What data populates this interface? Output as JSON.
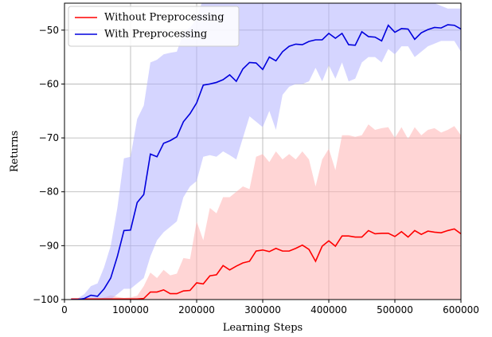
{
  "chart_data": {
    "type": "line",
    "xlabel": "Learning Steps",
    "ylabel": "Returns",
    "x": [
      10000,
      20000,
      30000,
      40000,
      50000,
      60000,
      70000,
      80000,
      90000,
      100000,
      110000,
      120000,
      130000,
      140000,
      150000,
      160000,
      170000,
      180000,
      190000,
      200000,
      210000,
      220000,
      230000,
      240000,
      250000,
      260000,
      270000,
      280000,
      290000,
      300000,
      310000,
      320000,
      330000,
      340000,
      350000,
      360000,
      370000,
      380000,
      390000,
      400000,
      410000,
      420000,
      430000,
      440000,
      450000,
      460000,
      470000,
      480000,
      490000,
      500000,
      510000,
      520000,
      530000,
      540000,
      550000,
      560000,
      570000,
      580000,
      590000,
      600000
    ],
    "series": [
      {
        "name": "Without Preprocessing",
        "color": "#ff0000",
        "band_color": "#ffb3b3",
        "values": [
          -99.9,
          -99.9,
          -99.9,
          -99.9,
          -99.9,
          -99.9,
          -99.9,
          -99.9,
          -99.9,
          -99.9,
          -99.9,
          -99.8,
          -98.6,
          -98.6,
          -98.2,
          -98.9,
          -98.9,
          -98.4,
          -98.3,
          -96.9,
          -97.1,
          -95.6,
          -95.4,
          -93.7,
          -94.5,
          -93.8,
          -93.2,
          -92.9,
          -91,
          -90.8,
          -91.1,
          -90.5,
          -91,
          -91,
          -90.5,
          -89.9,
          -90.7,
          -92.9,
          -90.1,
          -89.1,
          -90.1,
          -88.2,
          -88.2,
          -88.4,
          -88.4,
          -87.2,
          -87.8,
          -87.7,
          -87.7,
          -88.3,
          -87.4,
          -88.4,
          -87.2,
          -87.9,
          -87.3,
          -87.5,
          -87.6,
          -87.2,
          -86.9,
          -87.8
        ],
        "upper": [
          -100,
          -100,
          -100,
          -100,
          -100,
          -99.6,
          -99.2,
          -99.5,
          -99.7,
          -99.6,
          -99.3,
          -97.5,
          -95,
          -96,
          -94.5,
          -95.5,
          -95.2,
          -92.3,
          -92.5,
          -85.5,
          -89,
          -83,
          -84,
          -81,
          -81,
          -80,
          -79,
          -79.5,
          -73.5,
          -73,
          -74.5,
          -72.5,
          -74,
          -73,
          -74,
          -72.5,
          -74,
          -79,
          -74,
          -72,
          -76,
          -69.5,
          -69.5,
          -69.8,
          -69.5,
          -67.5,
          -68.5,
          -68.2,
          -68,
          -70,
          -68,
          -70.2,
          -68,
          -69.5,
          -68.5,
          -68.2,
          -69,
          -68.5,
          -67.8,
          -69.5
        ],
        "lower": [
          -100,
          -100,
          -100,
          -100,
          -100,
          -100,
          -100,
          -100,
          -100,
          -100,
          -100,
          -100,
          -100,
          -100,
          -100,
          -100,
          -100,
          -100,
          -100,
          -100,
          -100,
          -100,
          -100,
          -100,
          -100,
          -100,
          -100,
          -100,
          -100,
          -100,
          -100,
          -100,
          -100,
          -100,
          -100,
          -100,
          -100,
          -100,
          -100,
          -100,
          -100,
          -100,
          -100,
          -100,
          -100,
          -100,
          -100,
          -100,
          -100,
          -100,
          -100,
          -100,
          -100,
          -100,
          -100,
          -100,
          -100,
          -100,
          -100,
          -100
        ]
      },
      {
        "name": "With Preprocessing",
        "color": "#0000dd",
        "band_color": "#b3b3ff",
        "values": [
          -100,
          -100,
          -99.8,
          -99.2,
          -99.4,
          -98,
          -96,
          -92,
          -87.2,
          -87.1,
          -82,
          -80.5,
          -73,
          -73.5,
          -71,
          -70.5,
          -69.8,
          -67,
          -65.5,
          -63.5,
          -60.2,
          -60,
          -59.7,
          -59.2,
          -58.3,
          -59.5,
          -57.2,
          -56,
          -56.1,
          -57.3,
          -55,
          -55.7,
          -54,
          -53,
          -52.6,
          -52.7,
          -52.1,
          -51.8,
          -51.8,
          -50.6,
          -51.5,
          -50.6,
          -52.7,
          -52.8,
          -50.3,
          -51.2,
          -51.3,
          -52,
          -49.1,
          -50.4,
          -49.7,
          -49.8,
          -51.7,
          -50.5,
          -49.9,
          -49.5,
          -49.6,
          -49,
          -49.1,
          -49.8
        ],
        "upper": [
          -100,
          -99.8,
          -99,
          -97.5,
          -97,
          -94,
          -90,
          -83,
          -73.8,
          -73.5,
          -66.5,
          -64,
          -56,
          -55.5,
          -54.5,
          -54.2,
          -54,
          -50.5,
          -49.5,
          -48,
          -44,
          -44,
          -44,
          -44,
          -44,
          -44,
          -44,
          -44,
          -44,
          -44,
          -44,
          -44,
          -44,
          -44,
          -44,
          -44,
          -44,
          -44,
          -44,
          -44,
          -44,
          -44,
          -44,
          -44,
          -44,
          -44,
          -44,
          -44,
          -44,
          -44,
          -44,
          -44,
          -44,
          -44,
          -44,
          -45,
          -45.5,
          -46,
          -46,
          -46
        ],
        "lower": [
          -100,
          -100,
          -100,
          -100,
          -100,
          -100,
          -100,
          -99,
          -98,
          -98,
          -97,
          -96,
          -92,
          -89,
          -87.5,
          -86.5,
          -85.5,
          -81,
          -79,
          -78,
          -73.5,
          -73.2,
          -73.5,
          -72.5,
          -73.2,
          -74,
          -70,
          -66,
          -67,
          -68,
          -65,
          -68.5,
          -62,
          -60.5,
          -60,
          -60,
          -59.5,
          -57,
          -59.5,
          -56.5,
          -59,
          -56,
          -59.5,
          -59,
          -56,
          -55,
          -55,
          -56,
          -53.5,
          -54.5,
          -53,
          -53,
          -55,
          -54,
          -53,
          -52.5,
          -52,
          -52,
          -52,
          -54
        ]
      }
    ],
    "xlim": [
      0,
      600000
    ],
    "ylim": [
      -100,
      -45
    ],
    "xticks": [
      0,
      100000,
      200000,
      300000,
      400000,
      500000,
      600000
    ],
    "yticks": [
      {
        "value": -100,
        "label": "−100"
      },
      {
        "value": -90,
        "label": "−90"
      },
      {
        "value": -80,
        "label": "−80"
      },
      {
        "value": -70,
        "label": "−70"
      },
      {
        "value": -60,
        "label": "−60"
      },
      {
        "value": -50,
        "label": "−50"
      }
    ],
    "grid": true,
    "legend": "upper left"
  }
}
